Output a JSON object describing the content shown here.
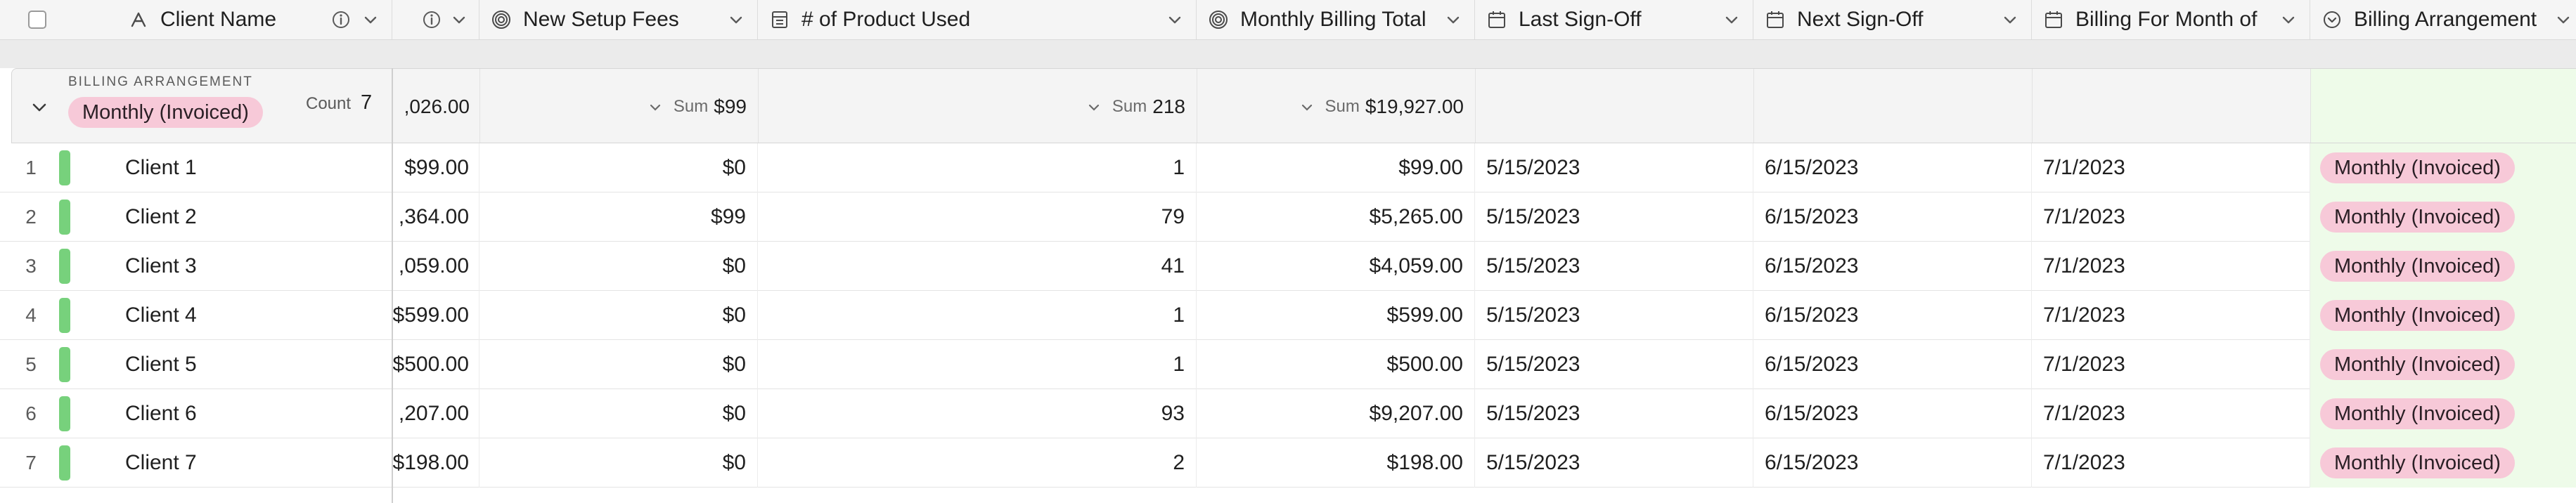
{
  "header": {
    "columns": [
      {
        "label": "Client Name",
        "icon": "text-field-icon"
      },
      {
        "label": "",
        "icon": "info-icon"
      },
      {
        "label": "New Setup Fees",
        "icon": "rollup-icon"
      },
      {
        "label": "# of Product Used",
        "icon": "number-icon"
      },
      {
        "label": "Monthly Billing Total",
        "icon": "rollup-icon"
      },
      {
        "label": "Last Sign-Off",
        "icon": "calendar-icon"
      },
      {
        "label": "Next Sign-Off",
        "icon": "calendar-icon"
      },
      {
        "label": "Billing For Month of",
        "icon": "calendar-icon"
      },
      {
        "label": "Billing Arrangement",
        "icon": "single-select-icon"
      }
    ]
  },
  "group": {
    "field_label": "BILLING ARRANGEMENT",
    "value": "Monthly (Invoiced)",
    "count_label": "Count",
    "count": "7",
    "sums": {
      "hidden_total": ",026.00",
      "setup_label": "Sum",
      "setup": "$99",
      "products_label": "Sum",
      "products": "218",
      "monthly_label": "Sum",
      "monthly": "$19,927.00"
    }
  },
  "rows": [
    {
      "num": "1",
      "client": "Client 1",
      "hidden": "$99.00",
      "setup": "$0",
      "products": "1",
      "monthly": "$99.00",
      "last": "5/15/2023",
      "next": "6/15/2023",
      "month": "7/1/2023",
      "arrangement": "Monthly (Invoiced)"
    },
    {
      "num": "2",
      "client": "Client 2",
      "hidden": ",364.00",
      "setup": "$99",
      "products": "79",
      "monthly": "$5,265.00",
      "last": "5/15/2023",
      "next": "6/15/2023",
      "month": "7/1/2023",
      "arrangement": "Monthly (Invoiced)"
    },
    {
      "num": "3",
      "client": "Client 3",
      "hidden": ",059.00",
      "setup": "$0",
      "products": "41",
      "monthly": "$4,059.00",
      "last": "5/15/2023",
      "next": "6/15/2023",
      "month": "7/1/2023",
      "arrangement": "Monthly (Invoiced)"
    },
    {
      "num": "4",
      "client": "Client 4",
      "hidden": "$599.00",
      "setup": "$0",
      "products": "1",
      "monthly": "$599.00",
      "last": "5/15/2023",
      "next": "6/15/2023",
      "month": "7/1/2023",
      "arrangement": "Monthly (Invoiced)"
    },
    {
      "num": "5",
      "client": "Client 5",
      "hidden": "$500.00",
      "setup": "$0",
      "products": "1",
      "monthly": "$500.00",
      "last": "5/15/2023",
      "next": "6/15/2023",
      "month": "7/1/2023",
      "arrangement": "Monthly (Invoiced)"
    },
    {
      "num": "6",
      "client": "Client 6",
      "hidden": ",207.00",
      "setup": "$0",
      "products": "93",
      "monthly": "$9,207.00",
      "last": "5/15/2023",
      "next": "6/15/2023",
      "month": "7/1/2023",
      "arrangement": "Monthly (Invoiced)"
    },
    {
      "num": "7",
      "client": "Client 7",
      "hidden": "$198.00",
      "setup": "$0",
      "products": "2",
      "monthly": "$198.00",
      "last": "5/15/2023",
      "next": "6/15/2023",
      "month": "7/1/2023",
      "arrangement": "Monthly (Invoiced)"
    }
  ],
  "colors": {
    "pill_bg": "#f7c9d8",
    "row_stripe": "#77d17c",
    "highlight_column": "#eefbe9"
  }
}
